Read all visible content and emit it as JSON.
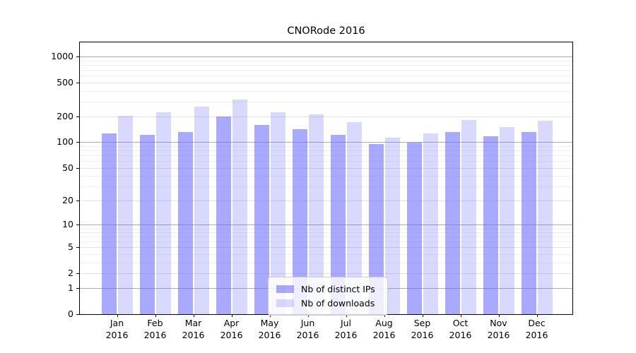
{
  "title": "CNORode 2016",
  "chart_data": {
    "type": "bar",
    "title": "CNORode 2016",
    "categories": [
      "Jan 2016",
      "Feb 2016",
      "Mar 2016",
      "Apr 2016",
      "May 2016",
      "Jun 2016",
      "Jul 2016",
      "Aug 2016",
      "Sep 2016",
      "Oct 2016",
      "Nov 2016",
      "Dec 2016"
    ],
    "months": [
      "Jan",
      "Feb",
      "Mar",
      "Apr",
      "May",
      "Jun",
      "Jul",
      "Aug",
      "Sep",
      "Oct",
      "Nov",
      "Dec"
    ],
    "year": "2016",
    "series": [
      {
        "name": "Nb of distinct IPs",
        "color": "#a9a9fa",
        "values": [
          128,
          122,
          131,
          201,
          161,
          142,
          122,
          96,
          99,
          133,
          117,
          132
        ]
      },
      {
        "name": "Nb of downloads",
        "color": "#d9d9f9",
        "values": [
          205,
          226,
          260,
          317,
          224,
          214,
          171,
          113,
          126,
          181,
          150,
          179
        ]
      }
    ],
    "yscale": "log1p",
    "ylabel": "",
    "xlabel": "",
    "y_ticks": [
      0,
      1,
      2,
      5,
      10,
      20,
      50,
      100,
      200,
      500,
      1000
    ],
    "ylim": [
      0,
      1450
    ],
    "grid": true,
    "legend_position": "lower center",
    "colors": {
      "bar_base": "#6666ff",
      "grid_major": "#ababab",
      "grid_minor": "#f0f0f0",
      "axis": "#000000"
    }
  }
}
